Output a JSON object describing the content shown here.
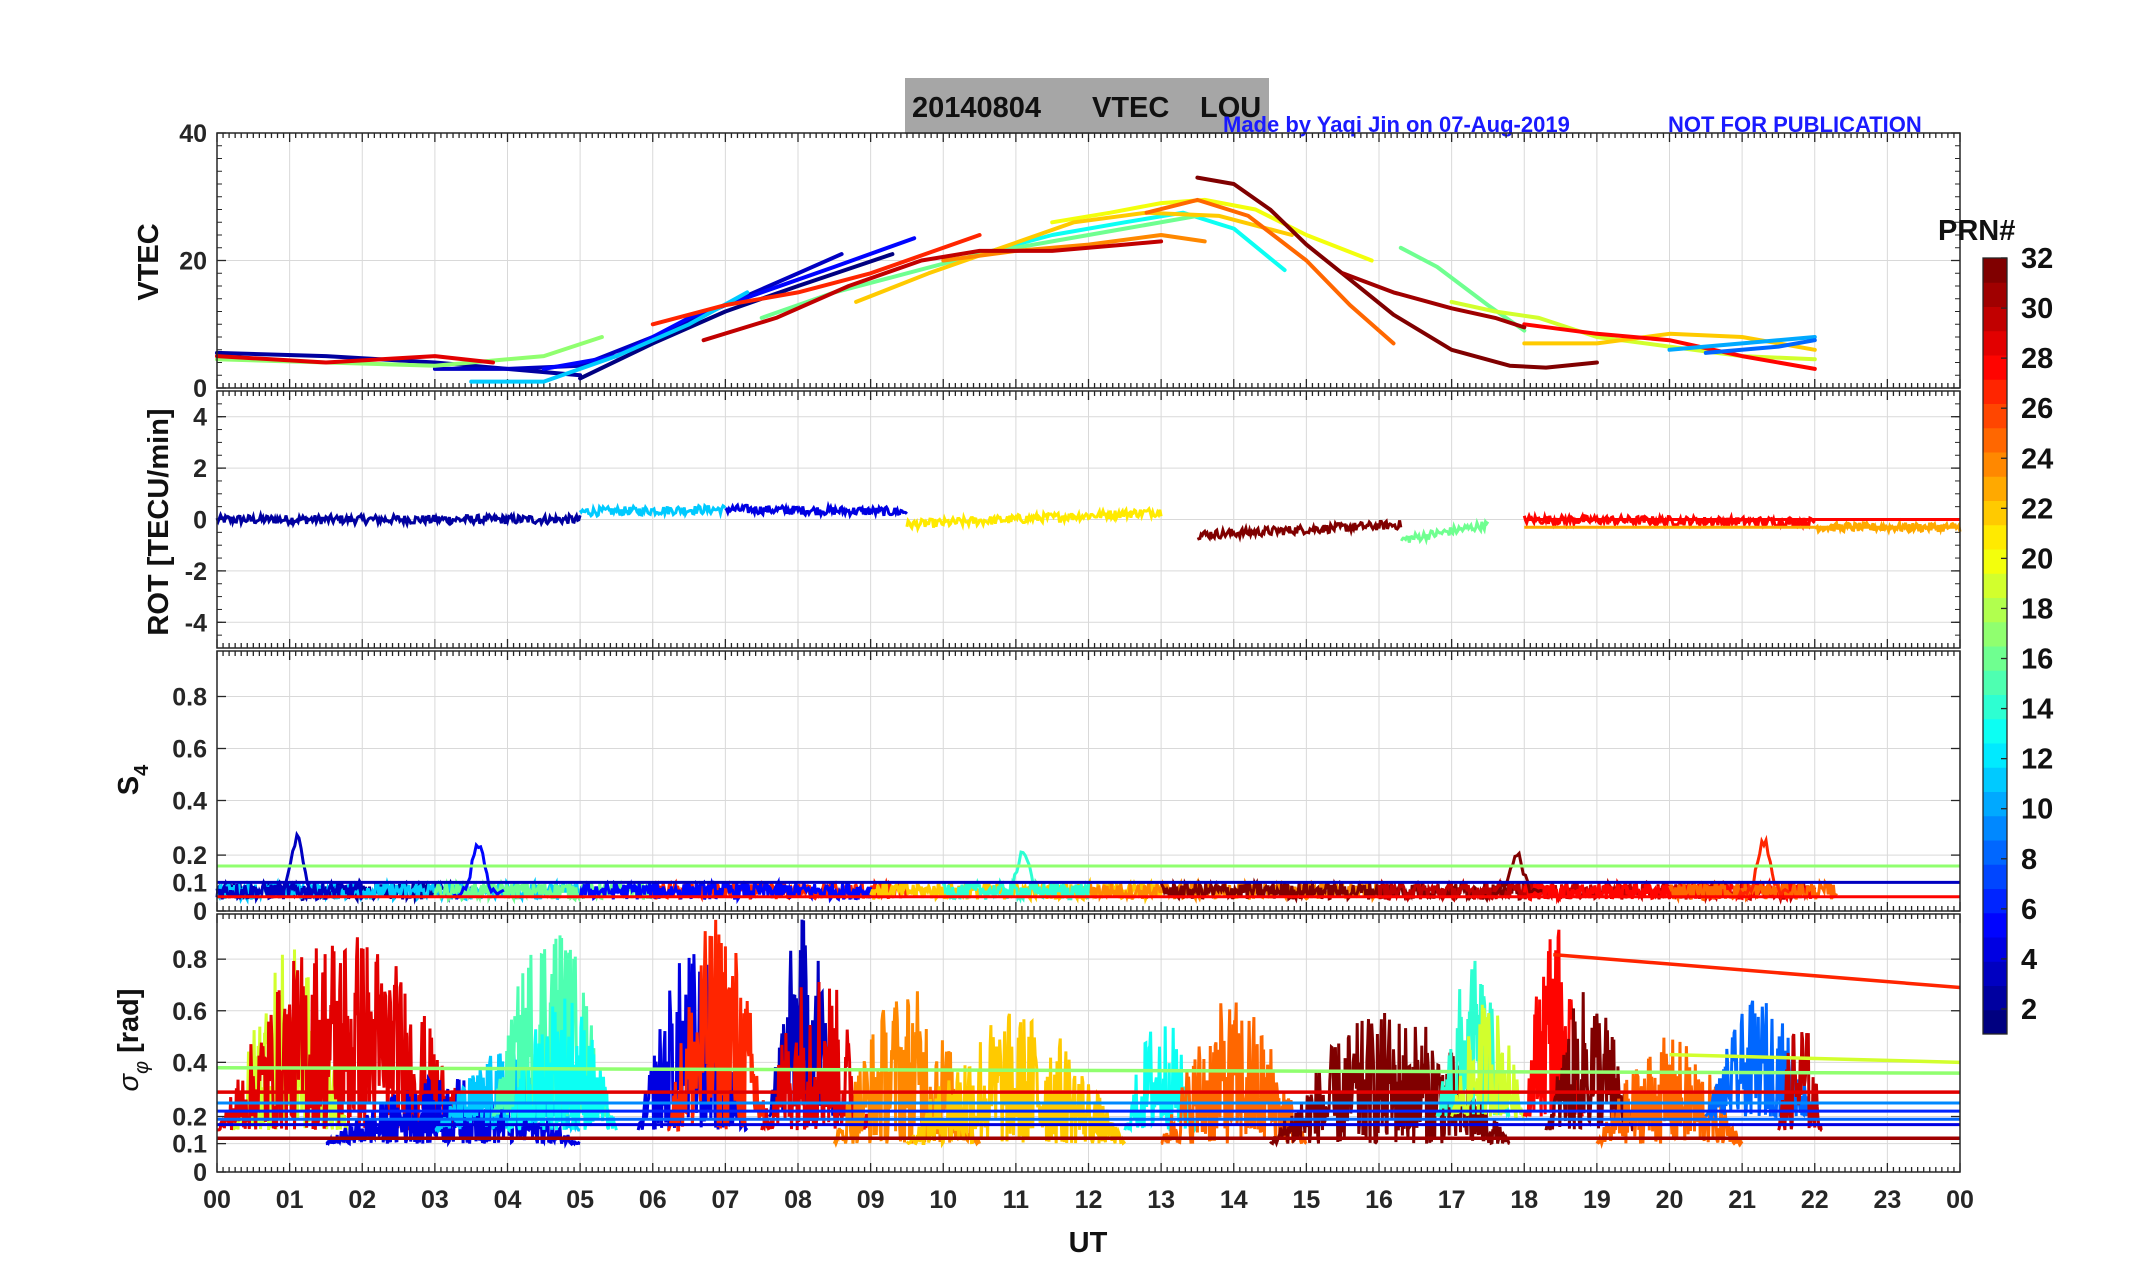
{
  "header": {
    "title_date": "20140804",
    "title_field": "VTEC",
    "title_station": "LOU",
    "credit": "Made by Yaqi Jin on 07-Aug-2019",
    "notice": "NOT FOR PUBLICATION"
  },
  "colorbar": {
    "title": "PRN#",
    "ticks": [
      "2",
      "4",
      "6",
      "8",
      "10",
      "12",
      "14",
      "16",
      "18",
      "20",
      "22",
      "24",
      "26",
      "28",
      "30",
      "32"
    ],
    "range": [
      1,
      32
    ],
    "colormap": "jet"
  },
  "chart_data": [
    {
      "type": "line",
      "panel": "VTEC",
      "ylabel": "VTEC",
      "ylim": [
        0,
        40
      ],
      "yticks": [
        "0",
        "20",
        "40"
      ],
      "xlim": [
        0,
        24
      ],
      "series": [
        {
          "prn": 2,
          "x": [
            0.0,
            1.5,
            3.0,
            4.0,
            5.0
          ],
          "values": [
            5.5,
            5.0,
            4.0,
            3.0,
            2.0
          ]
        },
        {
          "prn": 3,
          "x": [
            3.0,
            4.0,
            5.0,
            6.0,
            7.0,
            8.0,
            8.6
          ],
          "values": [
            3.0,
            3.0,
            3.5,
            8.0,
            13.0,
            18.0,
            21.0
          ]
        },
        {
          "prn": 5,
          "x": [
            4.5,
            5.5,
            6.5,
            7.5,
            8.5,
            9.6
          ],
          "values": [
            3.0,
            5.0,
            11.0,
            15.0,
            19.0,
            23.5
          ]
        },
        {
          "prn": 1,
          "x": [
            5.0,
            6.0,
            7.0,
            8.0,
            9.3
          ],
          "values": [
            1.5,
            7.0,
            12.0,
            16.0,
            21.0
          ]
        },
        {
          "prn": 11,
          "x": [
            3.5,
            4.5,
            5.5,
            6.5,
            7.3
          ],
          "values": [
            1.0,
            1.0,
            5.0,
            10.0,
            15.0
          ]
        },
        {
          "prn": 13,
          "x": [
            10.5,
            11.5,
            12.5,
            13.3,
            14.0,
            14.7
          ],
          "values": [
            21.0,
            24.0,
            26.0,
            27.5,
            25.0,
            18.5
          ]
        },
        {
          "prn": 16,
          "x": [
            7.5,
            8.5,
            9.5,
            10.5,
            11.5,
            12.5,
            13.5
          ],
          "values": [
            11.0,
            15.0,
            18.0,
            21.0,
            23.0,
            25.0,
            27.0
          ]
        },
        {
          "prn": 16,
          "x": [
            16.3,
            16.8,
            17.5,
            18.0
          ],
          "values": [
            22.0,
            19.0,
            13.0,
            9.0
          ]
        },
        {
          "prn": 17,
          "x": [
            0.0,
            1.5,
            3.0,
            4.5,
            5.3
          ],
          "values": [
            4.5,
            4.0,
            3.5,
            5.0,
            8.0
          ]
        },
        {
          "prn": 19,
          "x": [
            17.0,
            17.6,
            18.2,
            19.0,
            20.0,
            21.0,
            22.0
          ],
          "values": [
            13.5,
            12.0,
            11.0,
            8.0,
            6.5,
            5.0,
            4.5
          ]
        },
        {
          "prn": 20,
          "x": [
            11.5,
            12.3,
            13.0,
            13.6,
            14.3,
            15.0,
            15.9
          ],
          "values": [
            26.0,
            27.5,
            29.0,
            29.5,
            28.0,
            24.0,
            20.0
          ]
        },
        {
          "prn": 22,
          "x": [
            8.8,
            9.8,
            10.8,
            11.8,
            12.8,
            13.8,
            14.8
          ],
          "values": [
            13.5,
            18.0,
            22.0,
            26.0,
            27.5,
            27.0,
            24.0
          ]
        },
        {
          "prn": 22,
          "x": [
            18.0,
            19.0,
            20.0,
            21.0,
            22.0
          ],
          "values": [
            7.0,
            7.0,
            8.5,
            8.0,
            6.0
          ]
        },
        {
          "prn": 24,
          "x": [
            10.0,
            11.0,
            12.0,
            13.0,
            13.6
          ],
          "values": [
            20.0,
            21.5,
            22.5,
            24.0,
            23.0
          ]
        },
        {
          "prn": 25,
          "x": [
            12.8,
            13.5,
            14.2,
            15.0,
            15.6,
            16.2
          ],
          "values": [
            27.5,
            29.5,
            27.0,
            20.0,
            13.0,
            7.0
          ]
        },
        {
          "prn": 27,
          "x": [
            6.0,
            7.0,
            8.0,
            9.0,
            10.5
          ],
          "values": [
            10.0,
            13.0,
            15.0,
            18.0,
            24.0
          ]
        },
        {
          "prn": 29,
          "x": [
            0.0,
            1.5,
            3.0,
            3.8
          ],
          "values": [
            5.0,
            4.0,
            5.0,
            4.0
          ]
        },
        {
          "prn": 30,
          "x": [
            6.7,
            7.7,
            8.7,
            9.7,
            10.5,
            11.5,
            12.5,
            13.0
          ],
          "values": [
            7.5,
            11.0,
            16.0,
            20.0,
            21.5,
            21.5,
            22.5,
            23.0
          ]
        },
        {
          "prn": 28,
          "x": [
            18.0,
            19.0,
            20.0,
            21.0,
            22.0
          ],
          "values": [
            10.0,
            8.5,
            7.5,
            5.0,
            3.0
          ]
        },
        {
          "prn": 32,
          "x": [
            13.5,
            14.0,
            14.5,
            15.0,
            15.6,
            16.2,
            17.0,
            17.8,
            18.3,
            19.0
          ],
          "values": [
            33.0,
            32.0,
            28.0,
            22.5,
            17.0,
            11.5,
            6.0,
            3.5,
            3.2,
            4.0
          ]
        },
        {
          "prn": 31,
          "x": [
            15.5,
            16.2,
            17.0,
            17.6,
            18.0
          ],
          "values": [
            18.0,
            15.0,
            12.5,
            11.0,
            9.5
          ]
        },
        {
          "prn": 10,
          "x": [
            20.0,
            21.0,
            22.0
          ],
          "values": [
            6.0,
            7.0,
            8.0
          ]
        },
        {
          "prn": 8,
          "x": [
            20.5,
            21.5,
            22.0
          ],
          "values": [
            5.5,
            6.5,
            7.5
          ]
        }
      ]
    },
    {
      "type": "line",
      "panel": "ROT",
      "ylabel": "ROT [TECU/min]",
      "ylim": [
        -5,
        5
      ],
      "yticks": [
        "-4",
        "-2",
        "0",
        "2",
        "4"
      ],
      "xlim": [
        0,
        24
      ],
      "description_series": [
        {
          "prn": 2,
          "x": [
            0,
            3,
            5
          ],
          "values": [
            0.0,
            0.0,
            0.0
          ]
        },
        {
          "prn": 11,
          "x": [
            5,
            7
          ],
          "values": [
            0.3,
            0.4
          ]
        },
        {
          "prn": 4,
          "x": [
            7,
            9.5
          ],
          "values": [
            0.4,
            0.3
          ]
        },
        {
          "prn": 21,
          "x": [
            9.5,
            13
          ],
          "values": [
            -0.2,
            0.3
          ]
        },
        {
          "prn": 32,
          "x": [
            13.5,
            16.3
          ],
          "values": [
            -0.6,
            -0.2
          ]
        },
        {
          "prn": 16,
          "x": [
            16.3,
            17.5
          ],
          "values": [
            -0.8,
            -0.2
          ]
        },
        {
          "prn": 28,
          "x": [
            18,
            22
          ],
          "values": [
            0.0,
            -0.1
          ]
        },
        {
          "prn": 23,
          "x": [
            22,
            24
          ],
          "values": [
            -0.3,
            -0.3
          ]
        }
      ]
    },
    {
      "type": "line",
      "panel": "S4",
      "ylabel": "S4",
      "ylim": [
        0,
        1
      ],
      "yticks": [
        "0",
        "0.1",
        "0.2",
        "0.4",
        "0.6",
        "0.8"
      ],
      "xlim": [
        0,
        24
      ],
      "peaks": [
        {
          "prn": 3,
          "x": 1.1,
          "value": 0.26
        },
        {
          "prn": 5,
          "x": 3.6,
          "value": 0.24
        },
        {
          "prn": 14,
          "x": 11.1,
          "value": 0.21
        },
        {
          "prn": 32,
          "x": 17.9,
          "value": 0.2
        },
        {
          "prn": 27,
          "x": 21.3,
          "value": 0.25
        }
      ],
      "baselines": [
        {
          "prn": 17,
          "value": 0.16
        },
        {
          "prn": 3,
          "value": 0.1
        },
        {
          "prn": 28,
          "value": 0.05
        }
      ]
    },
    {
      "type": "line",
      "panel": "sigma_phi",
      "ylabel": "σφ [rad]",
      "ylim": [
        0,
        1
      ],
      "yticks": [
        "0",
        "0.1",
        "0.2",
        "0.4",
        "0.6",
        "0.8"
      ],
      "xlim": [
        0,
        24
      ],
      "xticks": [
        "00",
        "01",
        "02",
        "03",
        "04",
        "05",
        "06",
        "07",
        "08",
        "09",
        "10",
        "11",
        "12",
        "13",
        "14",
        "15",
        "16",
        "17",
        "18",
        "19",
        "20",
        "21",
        "22",
        "23",
        "00"
      ],
      "xlabel": "UT",
      "trend_lines": [
        {
          "prn": 27,
          "x": [
            18.4,
            24
          ],
          "values": [
            0.82,
            0.69
          ]
        },
        {
          "prn": 19,
          "x": [
            20.0,
            24
          ],
          "values": [
            0.43,
            0.4
          ]
        },
        {
          "prn": 17,
          "x": [
            0,
            24
          ],
          "values": [
            0.38,
            0.36
          ]
        },
        {
          "prn": 29,
          "x": [
            0,
            24
          ],
          "values": [
            0.29,
            0.29
          ]
        },
        {
          "prn": 31,
          "x": [
            0,
            24
          ],
          "values": [
            0.12,
            0.12
          ]
        }
      ]
    }
  ]
}
